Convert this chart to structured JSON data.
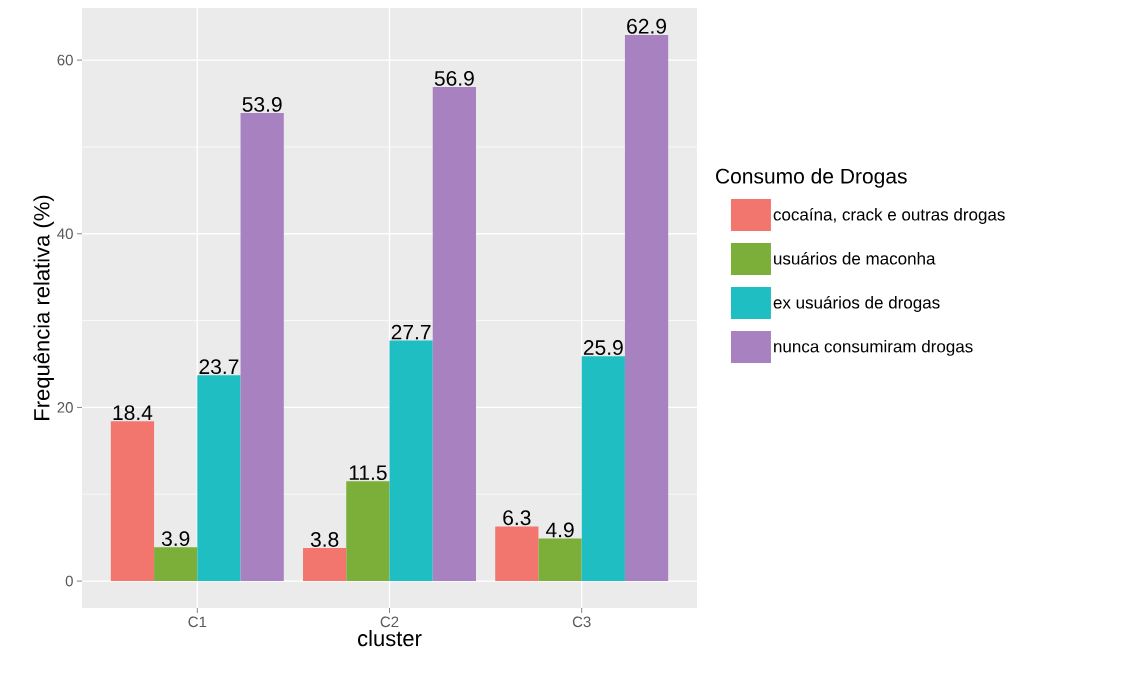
{
  "chart_data": {
    "type": "bar",
    "xlabel": "cluster",
    "ylabel": "Frequência relativa (%)",
    "legend_title": "Consumo de Drogas",
    "categories": [
      "C1",
      "C2",
      "C3"
    ],
    "series": [
      {
        "name": "cocaína, crack e outras drogas",
        "color": "#F3766E",
        "values": [
          18.4,
          3.8,
          6.3
        ]
      },
      {
        "name": "usuários de maconha",
        "color": "#7CAE3A",
        "values": [
          3.9,
          11.5,
          4.9
        ]
      },
      {
        "name": "ex usuários de drogas",
        "color": "#1FBEC3",
        "values": [
          23.7,
          27.7,
          25.9
        ]
      },
      {
        "name": "nunca consumiram drogas",
        "color": "#A882C0",
        "values": [
          53.9,
          56.9,
          62.9
        ]
      }
    ],
    "ylim": [
      -3.1,
      66
    ],
    "yticks": [
      0,
      20,
      40,
      60
    ],
    "grid": true,
    "legend": "right",
    "data_labels": true
  }
}
